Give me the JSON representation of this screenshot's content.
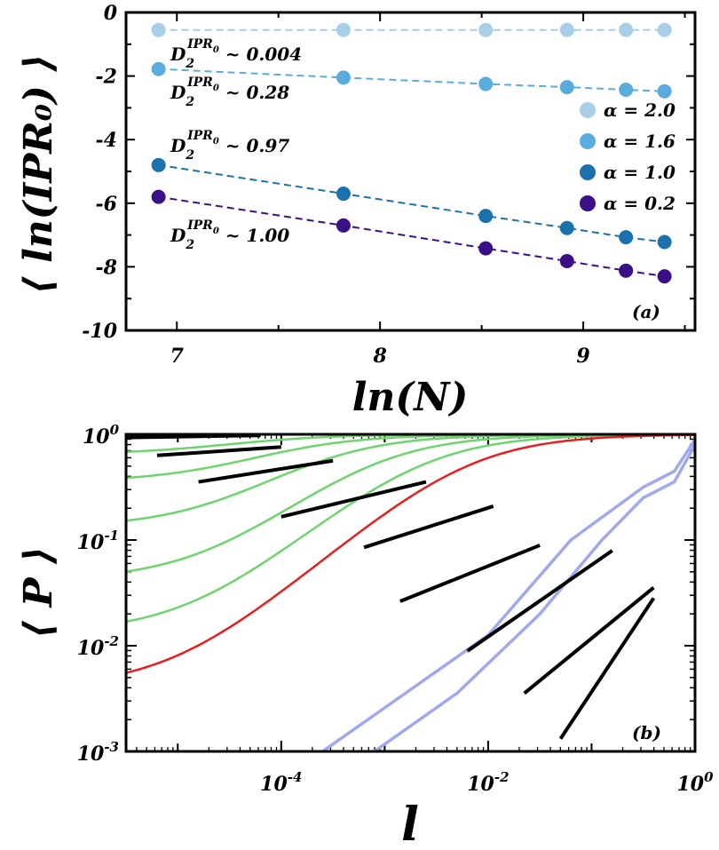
{
  "chart_data": [
    {
      "type": "scatter",
      "panel_label": "(a)",
      "xlabel": "ln(N)",
      "ylabel": "⟨ ln(IPR₀) ⟩",
      "xlim": [
        6.75,
        9.55
      ],
      "ylim": [
        -10,
        0
      ],
      "xticks": [
        7,
        8,
        9
      ],
      "yticks": [
        0,
        -2,
        -4,
        -6,
        -8,
        -10
      ],
      "x": [
        6.91,
        7.82,
        8.52,
        8.92,
        9.21,
        9.4
      ],
      "series": [
        {
          "name": "α = 2.0",
          "color": "#a9cfe6",
          "values": [
            -0.55,
            -0.55,
            -0.55,
            -0.55,
            -0.55,
            -0.55
          ],
          "slope": "0.004"
        },
        {
          "name": "α = 1.6",
          "color": "#5aacdf",
          "values": [
            -1.78,
            -2.05,
            -2.25,
            -2.35,
            -2.43,
            -2.48
          ],
          "slope": "0.28"
        },
        {
          "name": "α = 1.0",
          "color": "#1b71ac",
          "values": [
            -4.8,
            -5.7,
            -6.4,
            -6.78,
            -7.07,
            -7.22
          ],
          "slope": "0.97"
        },
        {
          "name": "α = 0.2",
          "color": "#3b0f86",
          "values": [
            -5.8,
            -6.7,
            -7.42,
            -7.82,
            -8.12,
            -8.3
          ],
          "slope": "1.00"
        }
      ],
      "annotations": [
        {
          "base": "D",
          "sub": "2",
          "sup": "IPR",
          "supsub": "0",
          "text": " ~ 0.004"
        },
        {
          "base": "D",
          "sub": "2",
          "sup": "IPR",
          "supsub": "0",
          "text": " ~ 0.28"
        },
        {
          "base": "D",
          "sub": "2",
          "sup": "IPR",
          "supsub": "0",
          "text": " ~ 0.97"
        },
        {
          "base": "D",
          "sub": "2",
          "sup": "IPR",
          "supsub": "0",
          "text": " ~ 1.00"
        }
      ]
    },
    {
      "type": "line",
      "scale": "log-log",
      "panel_label": "(b)",
      "xlabel": "l",
      "ylabel": "⟨ P ⟩",
      "xlim_log10": [
        -5.5,
        0
      ],
      "ylim_log10": [
        -3,
        0
      ],
      "xticks": [
        {
          "base": "10",
          "exp": "-4"
        },
        {
          "base": "10",
          "exp": "-2"
        },
        {
          "base": "10",
          "exp": "0"
        }
      ],
      "yticks": [
        {
          "base": "10",
          "exp": "0"
        },
        {
          "base": "10",
          "exp": "-1"
        },
        {
          "base": "10",
          "exp": "-2"
        },
        {
          "base": "10",
          "exp": "-3"
        }
      ],
      "curves": [
        {
          "name": "green-1",
          "color": "#6ed46e",
          "plateau_log10": -0.01,
          "knee_log10": -4.5
        },
        {
          "name": "green-2",
          "color": "#6ed46e",
          "plateau_log10": -0.19,
          "knee_log10": -4.4
        },
        {
          "name": "green-3",
          "color": "#6ed46e",
          "plateau_log10": -0.45,
          "knee_log10": -4.0
        },
        {
          "name": "green-4",
          "color": "#6ed46e",
          "plateau_log10": -0.88,
          "knee_log10": -3.6
        },
        {
          "name": "green-5",
          "color": "#6ed46e",
          "plateau_log10": -1.38,
          "knee_log10": -3.1
        },
        {
          "name": "green-6",
          "color": "#6ed46e",
          "plateau_log10": -1.88,
          "knee_log10": -2.65
        },
        {
          "name": "red",
          "color": "#e51f1f",
          "plateau_log10": -2.4,
          "knee_log10": -2.2
        },
        {
          "name": "blue-1",
          "color": "#a0a8ee",
          "points_log10": [
            [
              -3.6,
              -3.0
            ],
            [
              -2.8,
              -2.45
            ],
            [
              -2.0,
              -1.9
            ],
            [
              -1.2,
              -1.0
            ],
            [
              -0.5,
              -0.5
            ],
            [
              -0.2,
              -0.35
            ],
            [
              0,
              -0.05
            ]
          ]
        },
        {
          "name": "blue-2",
          "color": "#a0a8ee",
          "points_log10": [
            [
              -3.1,
              -3.0
            ],
            [
              -2.3,
              -2.45
            ],
            [
              -1.5,
              -1.7
            ],
            [
              -0.9,
              -1.0
            ],
            [
              -0.5,
              -0.6
            ],
            [
              -0.2,
              -0.45
            ],
            [
              0,
              -0.1
            ]
          ]
        }
      ],
      "fits": [
        {
          "name": "fit-1",
          "from": [
            -5.5,
            -0.03
          ],
          "to": [
            -4.2,
            -0.01
          ]
        },
        {
          "name": "fit-2",
          "from": [
            -5.2,
            -0.2
          ],
          "to": [
            -4.0,
            -0.12
          ]
        },
        {
          "name": "fit-3",
          "from": [
            -4.8,
            -0.45
          ],
          "to": [
            -3.5,
            -0.25
          ]
        },
        {
          "name": "fit-4",
          "from": [
            -4.0,
            -0.78
          ],
          "to": [
            -2.6,
            -0.45
          ]
        },
        {
          "name": "fit-5",
          "from": [
            -3.2,
            -1.07
          ],
          "to": [
            -1.95,
            -0.68
          ]
        },
        {
          "name": "fit-6",
          "from": [
            -2.85,
            -1.58
          ],
          "to": [
            -1.5,
            -1.05
          ]
        },
        {
          "name": "fit-7",
          "from": [
            -2.2,
            -2.05
          ],
          "to": [
            -0.8,
            -1.1
          ]
        },
        {
          "name": "fit-8",
          "from": [
            -1.65,
            -2.45
          ],
          "to": [
            -0.4,
            -1.45
          ]
        },
        {
          "name": "fit-9",
          "from": [
            -1.3,
            -2.88
          ],
          "to": [
            -0.4,
            -1.55
          ]
        }
      ]
    }
  ]
}
